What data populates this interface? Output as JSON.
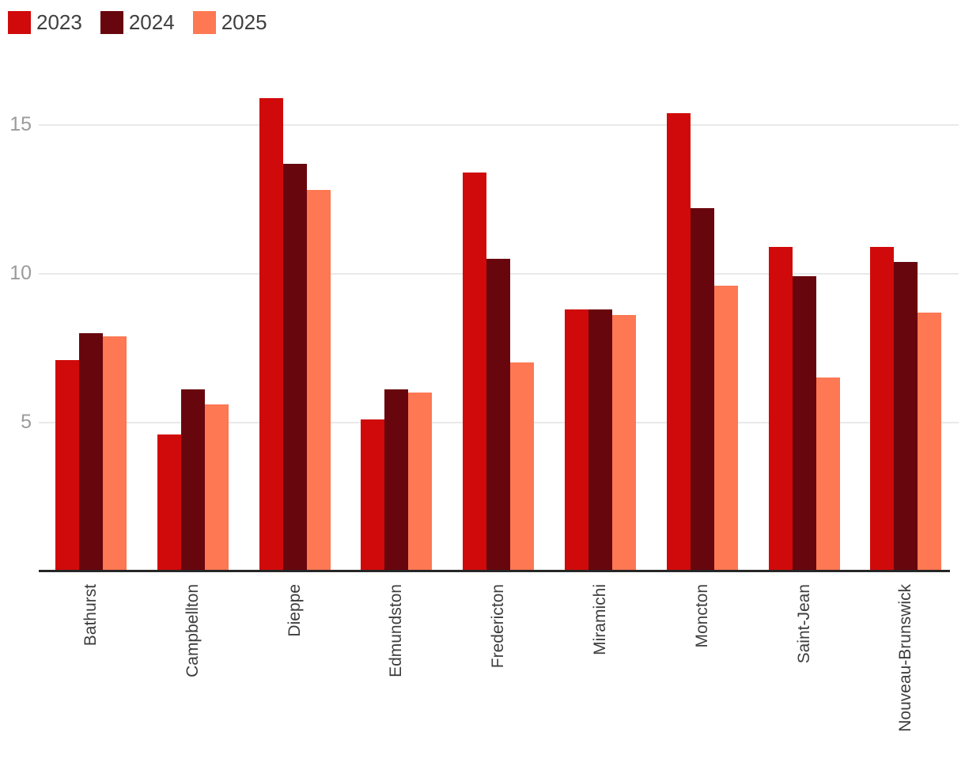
{
  "chart_data": {
    "type": "bar",
    "title": "",
    "xlabel": "",
    "ylabel": "",
    "categories": [
      "Bathurst",
      "Campbellton",
      "Dieppe",
      "Edmundston",
      "Fredericton",
      "Miramichi",
      "Moncton",
      "Saint-Jean",
      "Nouveau-Brunswick"
    ],
    "series": [
      {
        "name": "2023",
        "color": "#d00a0a",
        "values": [
          7.1,
          4.6,
          15.9,
          5.1,
          13.4,
          8.8,
          15.4,
          10.9,
          10.9
        ]
      },
      {
        "name": "2024",
        "color": "#68060e",
        "values": [
          8.0,
          6.1,
          13.7,
          6.1,
          10.5,
          8.8,
          12.2,
          9.9,
          10.4
        ]
      },
      {
        "name": "2025",
        "color": "#fd7853",
        "values": [
          7.9,
          5.6,
          12.8,
          6.0,
          7.0,
          8.6,
          9.6,
          6.5,
          8.7
        ]
      }
    ],
    "y_ticks": [
      5,
      10,
      15
    ],
    "ylim": [
      0,
      16.6
    ],
    "grid": true,
    "legend_position": "top-left",
    "colors": {
      "gridline": "#e9e9e9",
      "axis_line": "#262626",
      "y_tick_text": "#9b9b9b",
      "x_label_text": "#3d3d3d",
      "legend_text": "#3f3f3f",
      "background": "#ffffff"
    }
  }
}
